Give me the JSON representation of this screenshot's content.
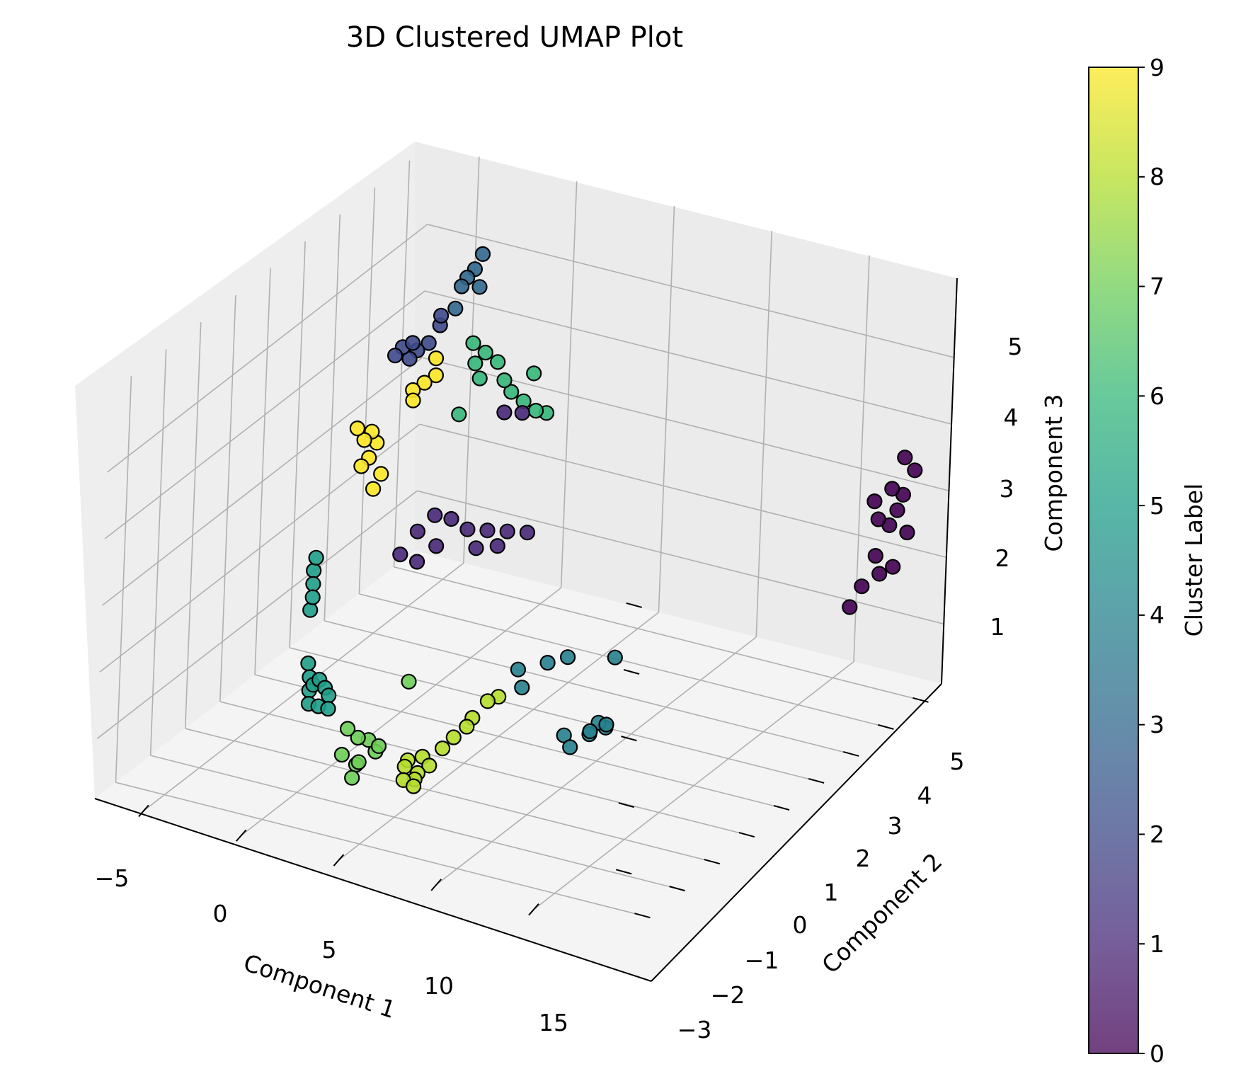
{
  "chart_data": {
    "type": "scatter",
    "title": "3D Clustered UMAP Plot",
    "xlabel": "Component 1",
    "ylabel": "Component 2",
    "zlabel": "Component 3",
    "colorbar_label": "Cluster Label",
    "xticks": [
      "−5",
      "0",
      "5",
      "10",
      "15"
    ],
    "yticks": [
      "−3",
      "−2",
      "−1",
      "0",
      "1",
      "2",
      "3",
      "4",
      "5"
    ],
    "zticks": [
      "1",
      "2",
      "3",
      "4",
      "5"
    ],
    "cticks": [
      "0",
      "1",
      "2",
      "3",
      "4",
      "5",
      "6",
      "7",
      "8",
      "9"
    ],
    "xlim": [
      -7.5,
      19.5
    ],
    "ylim": [
      -3.6,
      5.6
    ],
    "zlim": [
      0.1,
      6.2
    ],
    "clim": [
      0,
      9
    ],
    "colormap": "viridis",
    "point_colors": [
      "#440154",
      "#482878",
      "#3e4989",
      "#31688e",
      "#26828e",
      "#1f9e89",
      "#35b779",
      "#6ece58",
      "#b5de2b",
      "#fde725"
    ],
    "points": [
      {
        "x": 18.0,
        "y": 4.0,
        "z": 2.1,
        "c": 0
      },
      {
        "x": 18.3,
        "y": 4.2,
        "z": 2.5,
        "c": 0
      },
      {
        "x": 18.6,
        "y": 4.4,
        "z": 2.9,
        "c": 0
      },
      {
        "x": 18.9,
        "y": 4.6,
        "z": 3.3,
        "c": 0
      },
      {
        "x": 19.1,
        "y": 4.8,
        "z": 3.6,
        "c": 0
      },
      {
        "x": 18.5,
        "y": 4.5,
        "z": 3.4,
        "c": 0
      },
      {
        "x": 18.2,
        "y": 4.3,
        "z": 3.0,
        "c": 0
      },
      {
        "x": 19.0,
        "y": 4.7,
        "z": 2.7,
        "c": 0
      },
      {
        "x": 18.7,
        "y": 4.1,
        "z": 2.3,
        "c": 0
      },
      {
        "x": 17.8,
        "y": 4.4,
        "z": 3.2,
        "c": 0
      },
      {
        "x": 18.4,
        "y": 4.9,
        "z": 3.7,
        "c": 0
      },
      {
        "x": 19.2,
        "y": 4.2,
        "z": 2.4,
        "c": 0
      },
      {
        "x": 17.6,
        "y": 3.9,
        "z": 1.8,
        "c": 0
      },
      {
        "x": 18.8,
        "y": 4.5,
        "z": 3.1,
        "c": 0
      },
      {
        "x": 0.5,
        "y": 0.5,
        "z": 2.7,
        "c": 1
      },
      {
        "x": 1.0,
        "y": 0.7,
        "z": 3.0,
        "c": 1
      },
      {
        "x": 1.5,
        "y": 0.9,
        "z": 3.2,
        "c": 1
      },
      {
        "x": 2.0,
        "y": 1.1,
        "z": 3.1,
        "c": 1
      },
      {
        "x": 2.5,
        "y": 1.3,
        "z": 2.9,
        "c": 1
      },
      {
        "x": 1.2,
        "y": 0.6,
        "z": 2.6,
        "c": 1
      },
      {
        "x": 3.0,
        "y": 1.6,
        "z": 2.8,
        "c": 1
      },
      {
        "x": 3.5,
        "y": 1.9,
        "z": 2.7,
        "c": 1
      },
      {
        "x": 4.0,
        "y": 2.2,
        "z": 2.6,
        "c": 1
      },
      {
        "x": 1.8,
        "y": 0.8,
        "z": 2.8,
        "c": 1
      },
      {
        "x": 2.8,
        "y": 1.4,
        "z": 2.6,
        "c": 1
      },
      {
        "x": 3.2,
        "y": 1.8,
        "z": 2.5,
        "c": 1
      },
      {
        "x": 2.6,
        "y": 2.2,
        "z": 4.3,
        "c": 1
      },
      {
        "x": 3.0,
        "y": 2.5,
        "z": 4.2,
        "c": 1
      },
      {
        "x": -2.0,
        "y": 1.8,
        "z": 5.1,
        "c": 2
      },
      {
        "x": -1.6,
        "y": 2.0,
        "z": 5.0,
        "c": 2
      },
      {
        "x": -1.2,
        "y": 2.1,
        "z": 5.1,
        "c": 2
      },
      {
        "x": -1.8,
        "y": 1.9,
        "z": 4.9,
        "c": 2
      },
      {
        "x": -1.0,
        "y": 2.3,
        "z": 5.3,
        "c": 2
      },
      {
        "x": -2.2,
        "y": 1.7,
        "z": 5.0,
        "c": 2
      },
      {
        "x": -0.8,
        "y": 2.2,
        "z": 5.5,
        "c": 2
      },
      {
        "x": -1.5,
        "y": 1.8,
        "z": 5.2,
        "c": 2
      },
      {
        "x": -0.5,
        "y": 2.6,
        "z": 5.8,
        "c": 3
      },
      {
        "x": -0.2,
        "y": 2.8,
        "z": 6.0,
        "c": 3
      },
      {
        "x": 0.0,
        "y": 2.9,
        "z": 6.2,
        "c": 3
      },
      {
        "x": -0.4,
        "y": 2.7,
        "z": 5.9,
        "c": 3
      },
      {
        "x": -0.1,
        "y": 2.9,
        "z": 5.7,
        "c": 3
      },
      {
        "x": -0.6,
        "y": 2.5,
        "z": 5.5,
        "c": 3
      },
      {
        "x": 5.0,
        "y": 1.5,
        "z": 0.9,
        "c": 4
      },
      {
        "x": 5.8,
        "y": 1.9,
        "z": 0.9,
        "c": 4
      },
      {
        "x": 6.3,
        "y": 2.2,
        "z": 0.9,
        "c": 4
      },
      {
        "x": 5.4,
        "y": 1.4,
        "z": 0.7,
        "c": 4
      },
      {
        "x": 7.5,
        "y": 2.9,
        "z": 0.7,
        "c": 4
      },
      {
        "x": 8.5,
        "y": 1.9,
        "z": 0.2,
        "c": 4
      },
      {
        "x": 8.7,
        "y": 2.0,
        "z": 0.1,
        "c": 4
      },
      {
        "x": 8.4,
        "y": 1.7,
        "z": 0.1,
        "c": 4
      },
      {
        "x": 7.8,
        "y": 1.3,
        "z": 0.2,
        "c": 4
      },
      {
        "x": 8.6,
        "y": 1.6,
        "z": 0.2,
        "c": 4
      },
      {
        "x": 8.9,
        "y": 1.9,
        "z": 0.2,
        "c": 4
      },
      {
        "x": 8.3,
        "y": 1.2,
        "z": 0.1,
        "c": 4
      },
      {
        "x": -3.0,
        "y": 0.0,
        "z": 2.4,
        "c": 5
      },
      {
        "x": -3.0,
        "y": 0.0,
        "z": 2.2,
        "c": 5
      },
      {
        "x": -3.0,
        "y": 0.0,
        "z": 2.0,
        "c": 5
      },
      {
        "x": -2.9,
        "y": 0.0,
        "z": 2.6,
        "c": 5
      },
      {
        "x": -3.1,
        "y": 0.0,
        "z": 1.8,
        "c": 5
      },
      {
        "x": -3.1,
        "y": 0.0,
        "z": 1.0,
        "c": 5
      },
      {
        "x": -3.0,
        "y": 0.0,
        "z": 0.8,
        "c": 5
      },
      {
        "x": -2.5,
        "y": 0.0,
        "z": 0.8,
        "c": 5
      },
      {
        "x": -2.8,
        "y": 0.0,
        "z": 0.7,
        "c": 5
      },
      {
        "x": -2.2,
        "y": 0.0,
        "z": 0.7,
        "c": 5
      },
      {
        "x": -2.0,
        "y": 0.0,
        "z": 0.6,
        "c": 5
      },
      {
        "x": -3.0,
        "y": 0.0,
        "z": 0.6,
        "c": 5
      },
      {
        "x": -2.5,
        "y": 0.0,
        "z": 0.4,
        "c": 5
      },
      {
        "x": -2.0,
        "y": 0.0,
        "z": 0.4,
        "c": 5
      },
      {
        "x": -3.0,
        "y": 0.0,
        "z": 0.4,
        "c": 5
      },
      {
        "x": 0.2,
        "y": 2.6,
        "z": 5.0,
        "c": 6
      },
      {
        "x": 0.5,
        "y": 2.8,
        "z": 4.8,
        "c": 6
      },
      {
        "x": 0.8,
        "y": 3.0,
        "z": 4.6,
        "c": 6
      },
      {
        "x": 1.0,
        "y": 3.1,
        "z": 4.3,
        "c": 6
      },
      {
        "x": 1.2,
        "y": 3.2,
        "z": 4.1,
        "c": 6
      },
      {
        "x": 1.5,
        "y": 3.4,
        "z": 3.9,
        "c": 6
      },
      {
        "x": 1.8,
        "y": 3.6,
        "z": 3.7,
        "c": 6
      },
      {
        "x": 2.0,
        "y": 3.8,
        "z": 3.6,
        "c": 6
      },
      {
        "x": 0.0,
        "y": 2.8,
        "z": 4.6,
        "c": 6
      },
      {
        "x": 0.3,
        "y": 2.2,
        "z": 4.1,
        "c": 6
      },
      {
        "x": 1.8,
        "y": 3.5,
        "z": 4.3,
        "c": 6
      },
      {
        "x": 0.6,
        "y": 2.6,
        "z": 4.5,
        "c": 6
      },
      {
        "x": 0.4,
        "y": -0.8,
        "z": 0.6,
        "c": 7
      },
      {
        "x": 0.6,
        "y": -0.6,
        "z": 0.4,
        "c": 7
      },
      {
        "x": 0.8,
        "y": -0.4,
        "z": 0.3,
        "c": 7
      },
      {
        "x": 1.0,
        "y": -0.3,
        "z": 0.1,
        "c": 7
      },
      {
        "x": 0.5,
        "y": -1.0,
        "z": 0.3,
        "c": 7
      },
      {
        "x": 0.9,
        "y": -0.8,
        "z": 0.1,
        "c": 7
      },
      {
        "x": 1.2,
        "y": -0.9,
        "z": 0.2,
        "c": 7
      },
      {
        "x": 1.5,
        "y": -0.5,
        "z": 0.3,
        "c": 7
      },
      {
        "x": 1.7,
        "y": 0.2,
        "z": 1.0,
        "c": 7
      },
      {
        "x": 1.4,
        "y": -1.2,
        "z": 0.1,
        "c": 7
      },
      {
        "x": 3.0,
        "y": -0.5,
        "z": 0.2,
        "c": 8
      },
      {
        "x": 3.4,
        "y": -0.3,
        "z": 0.2,
        "c": 8
      },
      {
        "x": 3.7,
        "y": -0.6,
        "z": 0.1,
        "c": 8
      },
      {
        "x": 3.9,
        "y": -0.8,
        "z": 0.1,
        "c": 8
      },
      {
        "x": 4.1,
        "y": -0.5,
        "z": 0.2,
        "c": 8
      },
      {
        "x": 4.4,
        "y": -0.3,
        "z": 0.4,
        "c": 8
      },
      {
        "x": 4.6,
        "y": -0.1,
        "z": 0.5,
        "c": 8
      },
      {
        "x": 4.9,
        "y": 0.1,
        "z": 0.6,
        "c": 8
      },
      {
        "x": 5.4,
        "y": 0.4,
        "z": 0.9,
        "c": 8
      },
      {
        "x": 5.6,
        "y": 0.6,
        "z": 0.9,
        "c": 8
      },
      {
        "x": 3.5,
        "y": -0.9,
        "z": 0.1,
        "c": 8
      },
      {
        "x": 4.2,
        "y": -1.0,
        "z": 0.1,
        "c": 8
      },
      {
        "x": 5.0,
        "y": 0.2,
        "z": 0.7,
        "c": 8
      },
      {
        "x": 3.2,
        "y": -0.7,
        "z": 0.2,
        "c": 8
      },
      {
        "x": -2.2,
        "y": 1.2,
        "z": 3.2,
        "c": 9
      },
      {
        "x": -2.0,
        "y": 1.3,
        "z": 3.4,
        "c": 9
      },
      {
        "x": -2.5,
        "y": 1.0,
        "z": 3.6,
        "c": 9
      },
      {
        "x": -2.3,
        "y": 1.1,
        "z": 3.7,
        "c": 9
      },
      {
        "x": -2.1,
        "y": 1.2,
        "z": 3.9,
        "c": 9
      },
      {
        "x": -2.4,
        "y": 1.0,
        "z": 4.0,
        "c": 9
      },
      {
        "x": -2.6,
        "y": 0.9,
        "z": 4.2,
        "c": 9
      },
      {
        "x": -2.2,
        "y": 1.1,
        "z": 4.1,
        "c": 9
      },
      {
        "x": -0.8,
        "y": 2.1,
        "z": 4.9,
        "c": 9
      },
      {
        "x": -1.0,
        "y": 1.9,
        "z": 4.6,
        "c": 9
      },
      {
        "x": -1.2,
        "y": 1.7,
        "z": 4.4,
        "c": 9
      },
      {
        "x": -0.6,
        "y": 2.0,
        "z": 4.7,
        "c": 9
      },
      {
        "x": -1.4,
        "y": 1.8,
        "z": 4.5,
        "c": 9
      }
    ]
  }
}
